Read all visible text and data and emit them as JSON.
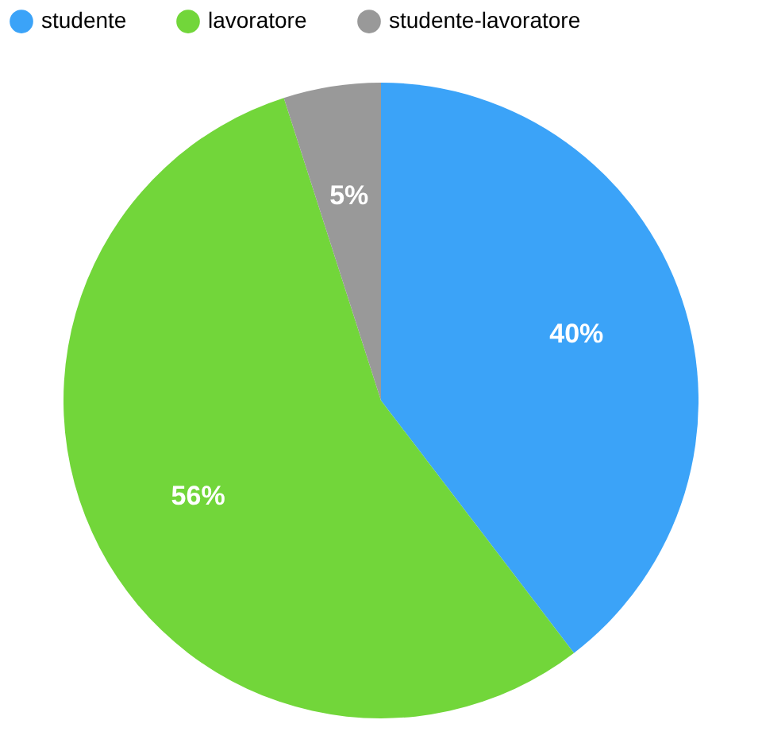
{
  "chart_data": {
    "type": "pie",
    "categories": [
      "studente",
      "lavoratore",
      "studente-lavoratore"
    ],
    "values": [
      40,
      56,
      5
    ],
    "colors": [
      "#3ba3f8",
      "#72d63a",
      "#999999"
    ],
    "value_labels": [
      "40%",
      "56%",
      "5%"
    ],
    "legend": "top"
  }
}
